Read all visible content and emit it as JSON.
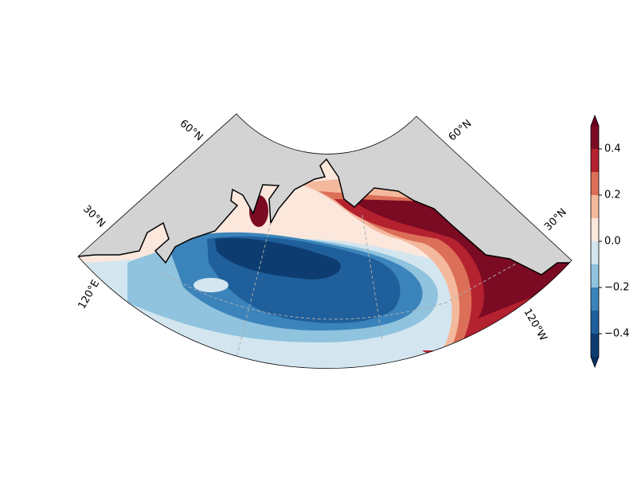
{
  "chart_data": {
    "type": "contour",
    "graticule_labels": [
      "60°N",
      "60°N",
      "30°N",
      "30°N",
      "120°E",
      "120°W"
    ],
    "levels": [
      -0.5,
      -0.4,
      -0.3,
      -0.2,
      -0.1,
      0,
      0.1,
      0.2,
      0.3,
      0.4,
      0.5
    ],
    "colors": [
      "#0d3d70",
      "#1f5f9c",
      "#3b84bb",
      "#90c3de",
      "#d3e6f0",
      "#fbe7dc",
      "#f4b99d",
      "#dc6f58",
      "#b4212f",
      "#7b0a23"
    ],
    "extend_colors": [
      "#053061",
      "#67001f"
    ],
    "cticks": [
      {
        "value": -0.4,
        "label": "−0.4"
      },
      {
        "value": -0.2,
        "label": "−0.2"
      },
      {
        "value": 0,
        "label": "0.0"
      },
      0.2,
      0.4
    ],
    "land_color": "#d3d3d3"
  }
}
